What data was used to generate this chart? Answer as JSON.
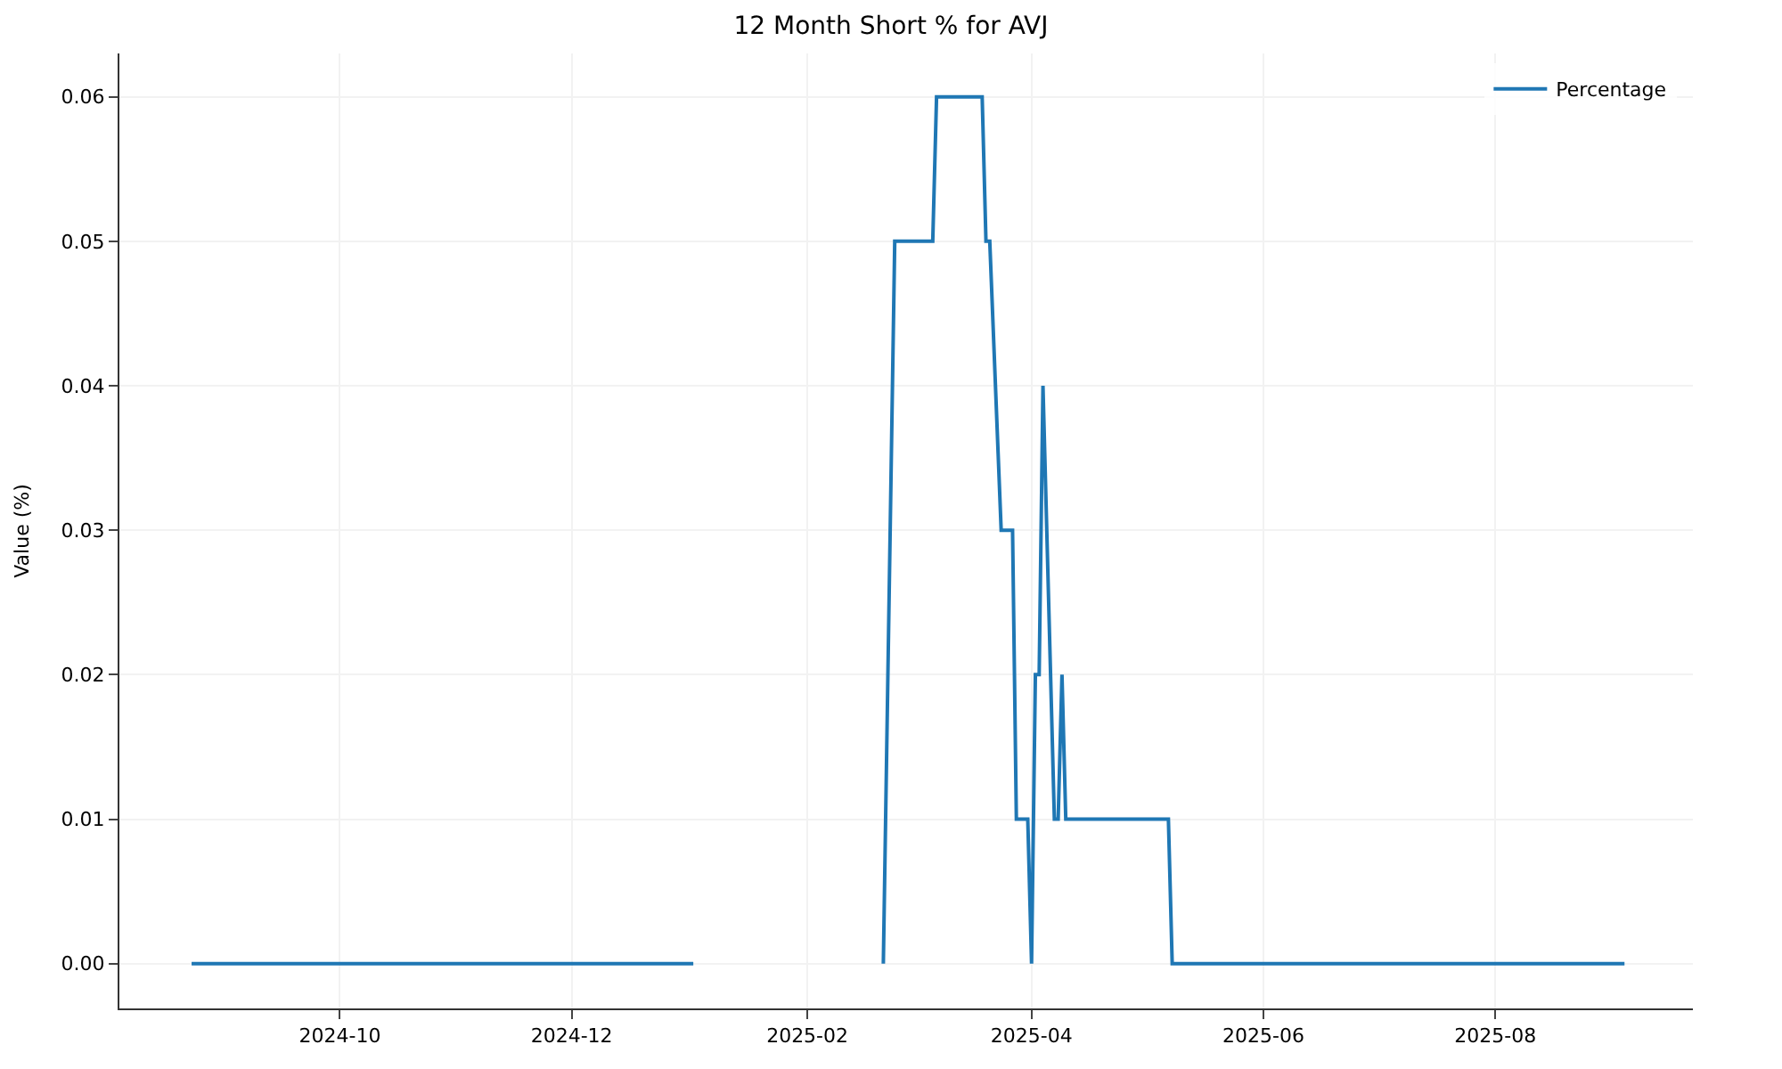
{
  "chart_data": {
    "type": "line",
    "title": "12 Month Short % for AVJ",
    "ylabel": "Value (%)",
    "x": [
      "2024-08-23",
      "2025-01-02",
      "2025-01-20",
      "2025-02-21",
      "2025-02-24",
      "2025-03-06",
      "2025-03-07",
      "2025-03-19",
      "2025-03-20",
      "2025-03-21",
      "2025-03-24",
      "2025-03-27",
      "2025-03-28",
      "2025-03-31",
      "2025-04-01",
      "2025-04-02",
      "2025-04-03",
      "2025-04-04",
      "2025-04-07",
      "2025-04-08",
      "2025-04-09",
      "2025-04-10",
      "2025-05-07",
      "2025-05-08",
      "2025-09-04"
    ],
    "series": [
      {
        "name": "Percentage",
        "color": "#1f77b4",
        "values": [
          0,
          0,
          null,
          0,
          0.05,
          0.05,
          0.06,
          0.06,
          0.05,
          0.05,
          0.03,
          0.03,
          0.01,
          0.01,
          0,
          0.02,
          0.02,
          0.04,
          0.01,
          0.01,
          0.02,
          0.01,
          0.01,
          0,
          0
        ]
      }
    ],
    "xlim": [
      "2024-08-04",
      "2025-09-22"
    ],
    "ylim": [
      -0.0031,
      0.063
    ],
    "xticks": [
      {
        "value": "2024-10-01",
        "label": "2024-10"
      },
      {
        "value": "2024-12-01",
        "label": "2024-12"
      },
      {
        "value": "2025-02-01",
        "label": "2025-02"
      },
      {
        "value": "2025-04-01",
        "label": "2025-04"
      },
      {
        "value": "2025-06-01",
        "label": "2025-06"
      },
      {
        "value": "2025-08-01",
        "label": "2025-08"
      }
    ],
    "yticks": [
      {
        "value": 0,
        "label": "0.00"
      },
      {
        "value": 0.01,
        "label": "0.01"
      },
      {
        "value": 0.02,
        "label": "0.02"
      },
      {
        "value": 0.03,
        "label": "0.03"
      },
      {
        "value": 0.04,
        "label": "0.04"
      },
      {
        "value": 0.05,
        "label": "0.05"
      },
      {
        "value": 0.06,
        "label": "0.06"
      }
    ],
    "grid": true,
    "legend": "top right",
    "line_style": "solid",
    "marker": "none"
  }
}
